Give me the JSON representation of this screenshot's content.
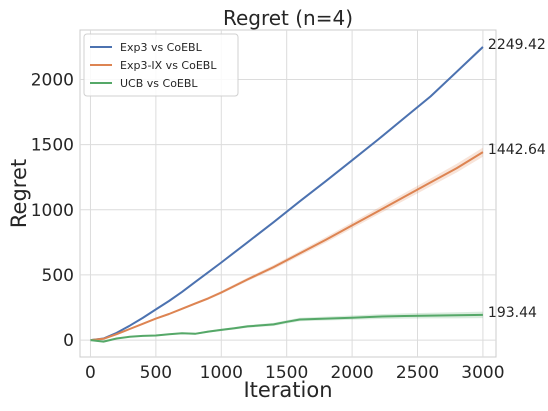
{
  "chart_data": {
    "type": "line",
    "title": "Regret (n=4)",
    "xlabel": "Iteration",
    "ylabel": "Regret",
    "xlim": [
      -80,
      3100
    ],
    "ylim": [
      -130,
      2380
    ],
    "xticks": [
      0,
      500,
      1000,
      1500,
      2000,
      2500,
      3000
    ],
    "yticks": [
      0,
      500,
      1000,
      1500,
      2000
    ],
    "grid": true,
    "legend_position": "top-left",
    "series": [
      {
        "name": "Exp3 vs CoEBL",
        "color": "#4c72b0",
        "band": 12,
        "end_label": "2249.42",
        "x": [
          0,
          100,
          200,
          300,
          400,
          500,
          600,
          700,
          800,
          900,
          1000,
          1200,
          1400,
          1600,
          1800,
          2000,
          2200,
          2400,
          2600,
          2800,
          3000
        ],
        "y": [
          0,
          12,
          55,
          110,
          170,
          235,
          300,
          370,
          445,
          520,
          595,
          750,
          905,
          1065,
          1220,
          1380,
          1540,
          1705,
          1870,
          2060,
          2249.42
        ]
      },
      {
        "name": "Exp3-IX vs CoEBL",
        "color": "#dd8452",
        "band": 35,
        "end_label": "1442.64",
        "x": [
          0,
          100,
          200,
          300,
          400,
          500,
          600,
          700,
          800,
          900,
          1000,
          1200,
          1400,
          1600,
          1800,
          2000,
          2200,
          2400,
          2600,
          2800,
          3000
        ],
        "y": [
          0,
          10,
          45,
          85,
          125,
          165,
          200,
          240,
          280,
          320,
          365,
          465,
          560,
          665,
          770,
          880,
          990,
          1100,
          1210,
          1320,
          1442.64
        ]
      },
      {
        "name": "UCB vs CoEBL",
        "color": "#55a868",
        "band": 25,
        "end_label": "193.44",
        "x": [
          0,
          100,
          200,
          300,
          400,
          500,
          600,
          700,
          800,
          900,
          1000,
          1100,
          1200,
          1400,
          1500,
          1600,
          1800,
          2000,
          2200,
          2400,
          2600,
          2800,
          3000
        ],
        "y": [
          0,
          -12,
          12,
          25,
          32,
          35,
          45,
          52,
          48,
          65,
          78,
          90,
          105,
          120,
          140,
          158,
          165,
          172,
          180,
          185,
          188,
          190,
          193.44
        ]
      }
    ]
  }
}
